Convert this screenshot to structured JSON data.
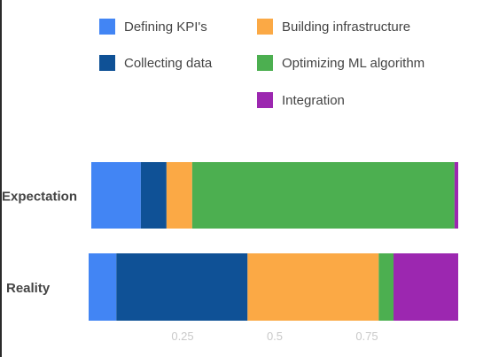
{
  "chart_data": {
    "type": "bar",
    "orientation": "horizontal",
    "stacked": true,
    "title": "",
    "xlabel": "",
    "ylabel": "",
    "categories": [
      "Expectation",
      "Reality"
    ],
    "series": [
      {
        "name": "Defining KPI's",
        "color": "#4285f4",
        "values": [
          0.135,
          0.075
        ]
      },
      {
        "name": "Collecting data",
        "color": "#0f5196",
        "values": [
          0.07,
          0.355
        ]
      },
      {
        "name": "Building infrastructure",
        "color": "#fba945",
        "values": [
          0.07,
          0.355
        ]
      },
      {
        "name": "Optimizing ML algorithm",
        "color": "#4caf50",
        "values": [
          0.715,
          0.04
        ]
      },
      {
        "name": "Integration",
        "color": "#9c27b0",
        "values": [
          0.01,
          0.175
        ]
      }
    ],
    "xlim": [
      0,
      1
    ],
    "xticks": [
      {
        "value": 0.25,
        "label": "0.25"
      },
      {
        "value": 0.5,
        "label": "0.5"
      },
      {
        "value": 0.75,
        "label": "0.75"
      }
    ],
    "grid": false,
    "legend_position": "top"
  }
}
